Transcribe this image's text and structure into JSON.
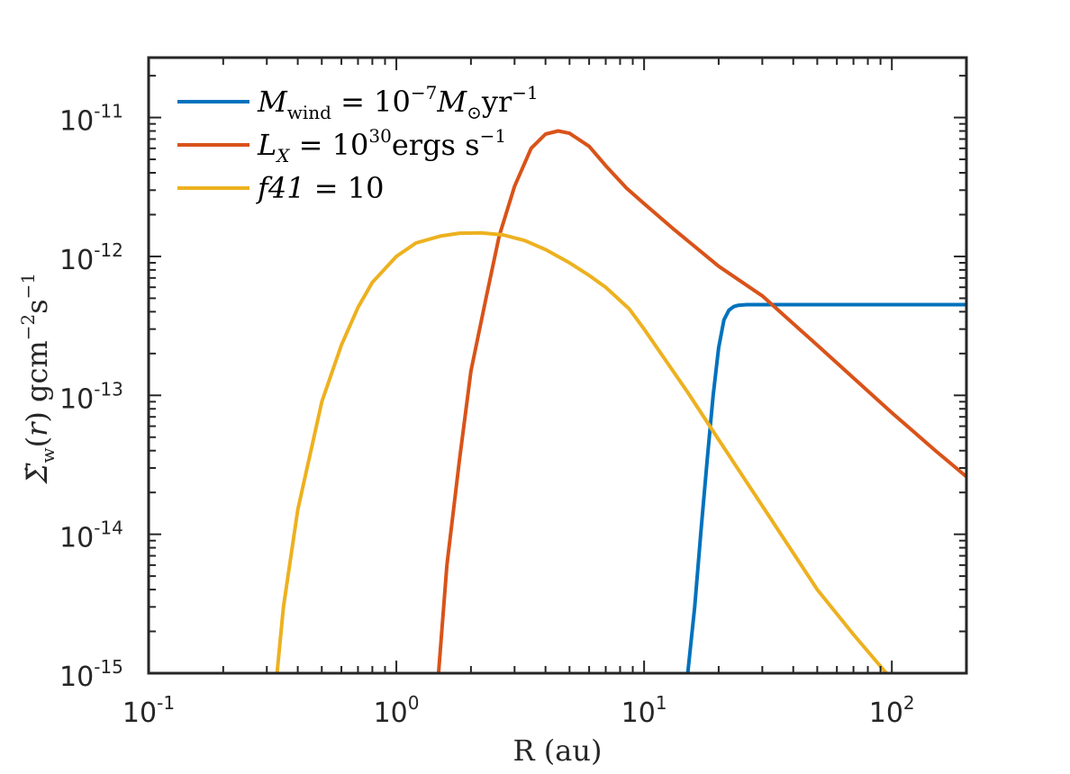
{
  "chart_data": {
    "type": "line",
    "xlabel": "R (au)",
    "ylabel": "Σ̇w(r) gcm−2s−1",
    "x_scale": "log",
    "y_scale": "log",
    "xlim": [
      0.1,
      200
    ],
    "ylim": [
      1e-15,
      2.7e-11
    ],
    "grid": false,
    "legend_position": "top-left",
    "x_ticks": [
      {
        "value": 0.1,
        "base": "10",
        "exp": "-1"
      },
      {
        "value": 1,
        "base": "10",
        "exp": "0"
      },
      {
        "value": 10,
        "base": "10",
        "exp": "1"
      },
      {
        "value": 100,
        "base": "10",
        "exp": "2"
      }
    ],
    "y_ticks": [
      {
        "value": 1e-11,
        "base": "10",
        "exp": "-11"
      },
      {
        "value": 1e-12,
        "base": "10",
        "exp": "-12"
      },
      {
        "value": 1e-13,
        "base": "10",
        "exp": "-13"
      },
      {
        "value": 1e-14,
        "base": "10",
        "exp": "-14"
      },
      {
        "value": 1e-15,
        "base": "10",
        "exp": "-15"
      }
    ],
    "series": [
      {
        "name": "Mwind = 10−7M⊙yr−1",
        "color": "#0072BD",
        "x": [
          15,
          16,
          17,
          18,
          19,
          20,
          21,
          22,
          23,
          24,
          26,
          30,
          50,
          100,
          200
        ],
        "y": [
          1e-15,
          3e-15,
          1.1e-14,
          3.5e-14,
          1e-13,
          2.2e-13,
          3.5e-13,
          4.1e-13,
          4.35e-13,
          4.45e-13,
          4.5e-13,
          4.5e-13,
          4.5e-13,
          4.5e-13,
          4.5e-13
        ]
      },
      {
        "name": "LX = 1030ergs s−1",
        "color": "#D95319",
        "x": [
          1.48,
          1.6,
          1.8,
          2.0,
          2.3,
          2.6,
          3.0,
          3.5,
          4.0,
          4.5,
          5.0,
          6.0,
          7.0,
          8.5,
          10,
          13,
          20,
          30,
          50,
          100,
          150,
          200
        ],
        "y": [
          1e-15,
          6e-15,
          3.5e-14,
          1.5e-13,
          5e-13,
          1.4e-12,
          3.2e-12,
          6e-12,
          7.6e-12,
          8e-12,
          7.7e-12,
          6.2e-12,
          4.5e-12,
          3.1e-12,
          2.4e-12,
          1.6e-12,
          8.5e-13,
          5.2e-13,
          2.3e-13,
          7.5e-14,
          4e-14,
          2.6e-14
        ]
      },
      {
        "name": "f41 = 10",
        "color": "#EDB120",
        "x": [
          0.33,
          0.35,
          0.4,
          0.5,
          0.6,
          0.7,
          0.8,
          1.0,
          1.2,
          1.5,
          1.8,
          2.2,
          2.7,
          3.3,
          4.0,
          5.0,
          6.0,
          7.0,
          8.7,
          10,
          15,
          20,
          30,
          50,
          70,
          95
        ],
        "y": [
          1e-15,
          3e-15,
          1.5e-14,
          9e-14,
          2.3e-13,
          4.3e-13,
          6.5e-13,
          1e-12,
          1.25e-12,
          1.4e-12,
          1.47e-12,
          1.48e-12,
          1.43e-12,
          1.3e-12,
          1.12e-12,
          9e-13,
          7.3e-13,
          6e-13,
          4.2e-13,
          3e-13,
          1.05e-13,
          4.8e-14,
          1.6e-14,
          4e-15,
          1.9e-15,
          1e-15
        ]
      }
    ]
  },
  "legend": [
    {
      "main": "M",
      "sub": "wind",
      "eq": " = 10",
      "sup": "−7",
      "rest": "M",
      "rest_sub": "⊙",
      "tail": "yr",
      "tail_sup": "−1"
    },
    {
      "main": "L",
      "sub": "X",
      "eq": " = 10",
      "sup": "30",
      "rest": "ergs s",
      "rest_sub": "",
      "tail": "",
      "tail_sup": "−1"
    },
    {
      "main": "f41",
      "sub": "",
      "eq": " = 10",
      "sup": "",
      "rest": "",
      "rest_sub": "",
      "tail": "",
      "tail_sup": ""
    }
  ]
}
